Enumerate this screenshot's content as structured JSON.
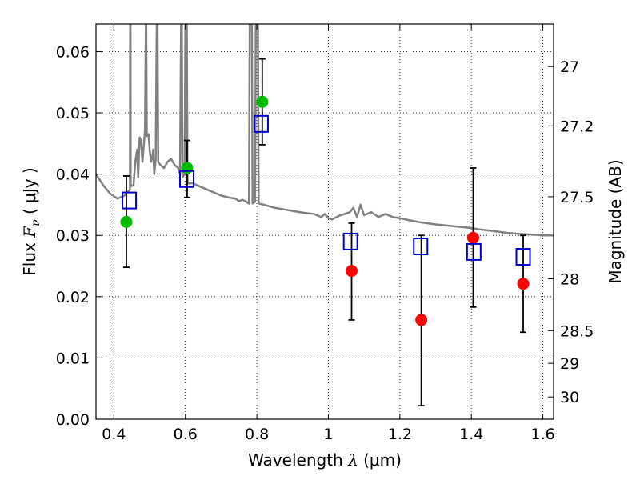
{
  "chart_data": {
    "type": "scatter",
    "xlabel": "Wavelength  λ (μm)",
    "ylabel": "Flux  Fν  ( μJy )",
    "ylabel_parts": {
      "prefix": "Flux  ",
      "symbol": "F",
      "subscript": "ν",
      "suffix": "  ( μJy )"
    },
    "xlabel_parts": {
      "prefix": "Wavelength  ",
      "symbol": "λ",
      "suffix": " (μm)"
    },
    "y2label": "Magnitude (AB)",
    "xlim": [
      0.35,
      1.63
    ],
    "ylim": [
      0.0,
      0.0645
    ],
    "grid": true,
    "x_ticks": [
      {
        "value": 0.4,
        "label": "0.4"
      },
      {
        "value": 0.6,
        "label": "0.6"
      },
      {
        "value": 0.8,
        "label": "0.8"
      },
      {
        "value": 1.0,
        "label": "1"
      },
      {
        "value": 1.2,
        "label": "1.2"
      },
      {
        "value": 1.4,
        "label": "1.4"
      },
      {
        "value": 1.6,
        "label": "1.6"
      }
    ],
    "y_ticks": [
      {
        "value": 0.0,
        "label": "0.00"
      },
      {
        "value": 0.01,
        "label": "0.01"
      },
      {
        "value": 0.02,
        "label": "0.02"
      },
      {
        "value": 0.03,
        "label": "0.03"
      },
      {
        "value": 0.04,
        "label": "0.04"
      },
      {
        "value": 0.05,
        "label": "0.05"
      },
      {
        "value": 0.06,
        "label": "0.06"
      }
    ],
    "y2_ticks": [
      {
        "mag": 27.0,
        "label": "27"
      },
      {
        "mag": 27.2,
        "label": "27.2"
      },
      {
        "mag": 27.5,
        "label": "27.5"
      },
      {
        "mag": 28.0,
        "label": "28"
      },
      {
        "mag": 28.5,
        "label": "28.5"
      },
      {
        "mag": 29.0,
        "label": "29"
      },
      {
        "mag": 30.0,
        "label": "30"
      }
    ],
    "model_spectrum": {
      "color": "#808080",
      "points": [
        [
          0.35,
          0.04
        ],
        [
          0.37,
          0.0382
        ],
        [
          0.39,
          0.0368
        ],
        [
          0.41,
          0.036
        ],
        [
          0.43,
          0.0365
        ],
        [
          0.445,
          0.0375
        ],
        [
          0.4455,
          0.0645
        ],
        [
          0.4465,
          0.0645
        ],
        [
          0.447,
          0.038
        ],
        [
          0.455,
          0.0382
        ],
        [
          0.46,
          0.042
        ],
        [
          0.465,
          0.044
        ],
        [
          0.468,
          0.0395
        ],
        [
          0.472,
          0.046
        ],
        [
          0.476,
          0.0455
        ],
        [
          0.48,
          0.042
        ],
        [
          0.484,
          0.045
        ],
        [
          0.487,
          0.047
        ],
        [
          0.4895,
          0.0645
        ],
        [
          0.4905,
          0.0645
        ],
        [
          0.492,
          0.0462
        ],
        [
          0.497,
          0.0465
        ],
        [
          0.5,
          0.044
        ],
        [
          0.504,
          0.042
        ],
        [
          0.508,
          0.043
        ],
        [
          0.51,
          0.044
        ],
        [
          0.513,
          0.04
        ],
        [
          0.517,
          0.0425
        ],
        [
          0.52,
          0.0645
        ],
        [
          0.522,
          0.0645
        ],
        [
          0.524,
          0.042
        ],
        [
          0.53,
          0.0415
        ],
        [
          0.54,
          0.041
        ],
        [
          0.55,
          0.042
        ],
        [
          0.56,
          0.0425
        ],
        [
          0.57,
          0.0415
        ],
        [
          0.58,
          0.041
        ],
        [
          0.585,
          0.04
        ],
        [
          0.588,
          0.0645
        ],
        [
          0.59,
          0.0645
        ],
        [
          0.592,
          0.0395
        ],
        [
          0.598,
          0.04
        ],
        [
          0.6,
          0.0645
        ],
        [
          0.604,
          0.0645
        ],
        [
          0.606,
          0.0385
        ],
        [
          0.62,
          0.0385
        ],
        [
          0.64,
          0.038
        ],
        [
          0.66,
          0.0375
        ],
        [
          0.68,
          0.037
        ],
        [
          0.7,
          0.0365
        ],
        [
          0.72,
          0.0362
        ],
        [
          0.74,
          0.036
        ],
        [
          0.75,
          0.0356
        ],
        [
          0.76,
          0.0358
        ],
        [
          0.77,
          0.0355
        ],
        [
          0.778,
          0.0352
        ],
        [
          0.78,
          0.0645
        ],
        [
          0.786,
          0.0645
        ],
        [
          0.788,
          0.0352
        ],
        [
          0.795,
          0.0355
        ],
        [
          0.797,
          0.0645
        ],
        [
          0.803,
          0.0645
        ],
        [
          0.805,
          0.0352
        ],
        [
          0.82,
          0.035
        ],
        [
          0.85,
          0.0345
        ],
        [
          0.88,
          0.0342
        ],
        [
          0.9,
          0.034
        ],
        [
          0.93,
          0.0337
        ],
        [
          0.96,
          0.0335
        ],
        [
          0.98,
          0.033
        ],
        [
          0.99,
          0.0335
        ],
        [
          1.0,
          0.0328
        ],
        [
          1.01,
          0.0326
        ],
        [
          1.03,
          0.0332
        ],
        [
          1.06,
          0.0338
        ],
        [
          1.07,
          0.0345
        ],
        [
          1.08,
          0.033
        ],
        [
          1.09,
          0.035
        ],
        [
          1.1,
          0.0333
        ],
        [
          1.12,
          0.0338
        ],
        [
          1.14,
          0.033
        ],
        [
          1.16,
          0.0335
        ],
        [
          1.18,
          0.033
        ],
        [
          1.2,
          0.0328
        ],
        [
          1.25,
          0.0322
        ],
        [
          1.3,
          0.0318
        ],
        [
          1.35,
          0.0315
        ],
        [
          1.4,
          0.0312
        ],
        [
          1.42,
          0.031
        ],
        [
          1.45,
          0.0308
        ],
        [
          1.5,
          0.0304
        ],
        [
          1.55,
          0.0302
        ],
        [
          1.58,
          0.0301
        ],
        [
          1.6,
          0.03
        ],
        [
          1.63,
          0.03
        ]
      ]
    },
    "photometry": {
      "points": [
        {
          "x": 0.435,
          "y": 0.0322,
          "err_low": 0.0248,
          "err_high": 0.0397,
          "color": "#00bb00"
        },
        {
          "x": 0.605,
          "y": 0.041,
          "err_low": 0.0362,
          "err_high": 0.0455,
          "color": "#00bb00"
        },
        {
          "x": 0.815,
          "y": 0.0518,
          "err_low": 0.0448,
          "err_high": 0.0588,
          "color": "#00bb00"
        },
        {
          "x": 1.065,
          "y": 0.0242,
          "err_low": 0.0162,
          "err_high": 0.032,
          "color": "#ff0000"
        },
        {
          "x": 1.26,
          "y": 0.0162,
          "err_low": 0.0022,
          "err_high": 0.03,
          "color": "#ff0000"
        },
        {
          "x": 1.405,
          "y": 0.0296,
          "err_low": 0.0183,
          "err_high": 0.041,
          "color": "#ff0000"
        },
        {
          "x": 1.545,
          "y": 0.0221,
          "err_low": 0.0142,
          "err_high": 0.03,
          "color": "#ff0000"
        }
      ]
    },
    "model_photometry": {
      "color": "#0000cc",
      "points": [
        {
          "x": 0.443,
          "y": 0.0357
        },
        {
          "x": 0.604,
          "y": 0.0392
        },
        {
          "x": 0.812,
          "y": 0.0482
        },
        {
          "x": 1.062,
          "y": 0.029
        },
        {
          "x": 1.258,
          "y": 0.0282
        },
        {
          "x": 1.407,
          "y": 0.0273
        },
        {
          "x": 1.545,
          "y": 0.0265
        }
      ]
    }
  }
}
